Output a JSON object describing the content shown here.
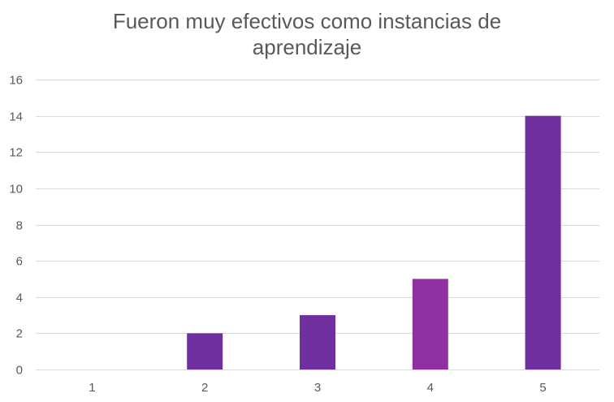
{
  "chart_data": {
    "type": "bar",
    "title_lines": [
      "Fueron muy efectivos como instancias de",
      "aprendizaje"
    ],
    "categories": [
      "1",
      "2",
      "3",
      "4",
      "5"
    ],
    "values": [
      0,
      2,
      3,
      5,
      14
    ],
    "bar_colors": [
      "#7030A0",
      "#7030A0",
      "#7030A0",
      "#9030A0",
      "#7030A0"
    ],
    "xlabel": "",
    "ylabel": "",
    "ylim": [
      0,
      16
    ],
    "yticks": [
      0,
      2,
      4,
      6,
      8,
      10,
      12,
      14,
      16
    ],
    "grid": true,
    "legend": "none"
  }
}
